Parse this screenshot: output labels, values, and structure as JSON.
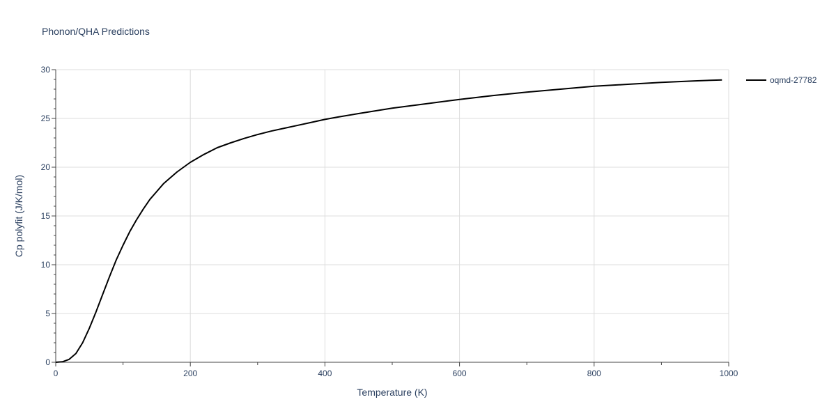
{
  "chart_data": {
    "type": "line",
    "title": "Phonon/QHA Predictions",
    "xlabel": "Temperature (K)",
    "ylabel": "Cp polyfit (J/K/mol)",
    "xlim": [
      0,
      1000
    ],
    "ylim": [
      0,
      30
    ],
    "xticks": [
      0,
      200,
      400,
      600,
      800,
      1000
    ],
    "yticks": [
      0,
      5,
      10,
      15,
      20,
      25,
      30
    ],
    "grid": true,
    "legend_position": "top-right",
    "series": [
      {
        "name": "oqmd-27782",
        "color": "#000000",
        "x": [
          0,
          10,
          20,
          30,
          40,
          50,
          60,
          70,
          80,
          90,
          100,
          110,
          120,
          130,
          140,
          150,
          160,
          170,
          180,
          190,
          200,
          220,
          240,
          260,
          280,
          300,
          320,
          340,
          360,
          380,
          400,
          420,
          450,
          500,
          550,
          600,
          650,
          700,
          750,
          800,
          850,
          900,
          950,
          990
        ],
        "y": [
          0,
          0.05,
          0.3,
          0.9,
          2.0,
          3.5,
          5.2,
          7.0,
          8.8,
          10.5,
          12.0,
          13.4,
          14.6,
          15.7,
          16.7,
          17.5,
          18.3,
          18.9,
          19.5,
          20.0,
          20.5,
          21.3,
          22.0,
          22.5,
          22.95,
          23.35,
          23.7,
          24.0,
          24.3,
          24.6,
          24.9,
          25.15,
          25.5,
          26.05,
          26.5,
          26.95,
          27.35,
          27.7,
          28.0,
          28.3,
          28.5,
          28.7,
          28.85,
          28.95
        ]
      }
    ]
  }
}
